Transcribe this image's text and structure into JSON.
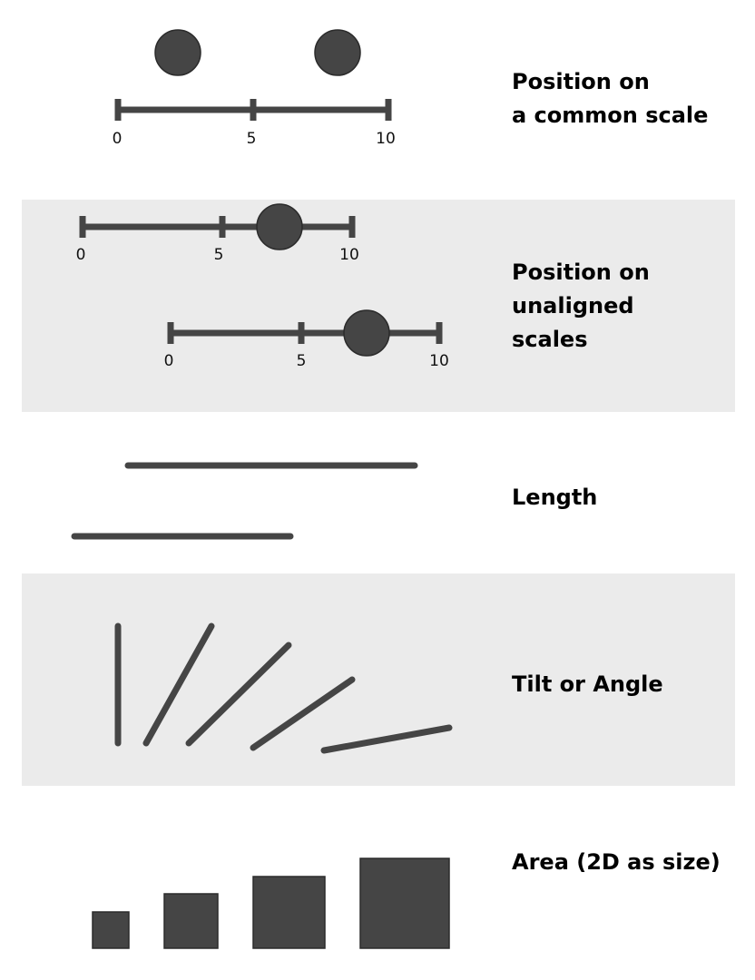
{
  "colors": {
    "mark": "#454545",
    "band": "#ebebeb",
    "text": "#000000"
  },
  "rows": [
    {
      "label_lines": [
        "Position on",
        "a common scale"
      ],
      "scale_ticks": [
        "0",
        "5",
        "10"
      ],
      "values": [
        2.3,
        8.2
      ]
    },
    {
      "label_lines": [
        "Position on",
        "unaligned",
        "scales"
      ],
      "scale_ticks": [
        "0",
        "5",
        "10"
      ],
      "values": [
        7.3,
        7.4
      ]
    },
    {
      "label_lines": [
        "Length"
      ]
    },
    {
      "label_lines": [
        "Tilt or Angle"
      ]
    },
    {
      "label_lines": [
        "Area (2D as size)"
      ]
    }
  ]
}
